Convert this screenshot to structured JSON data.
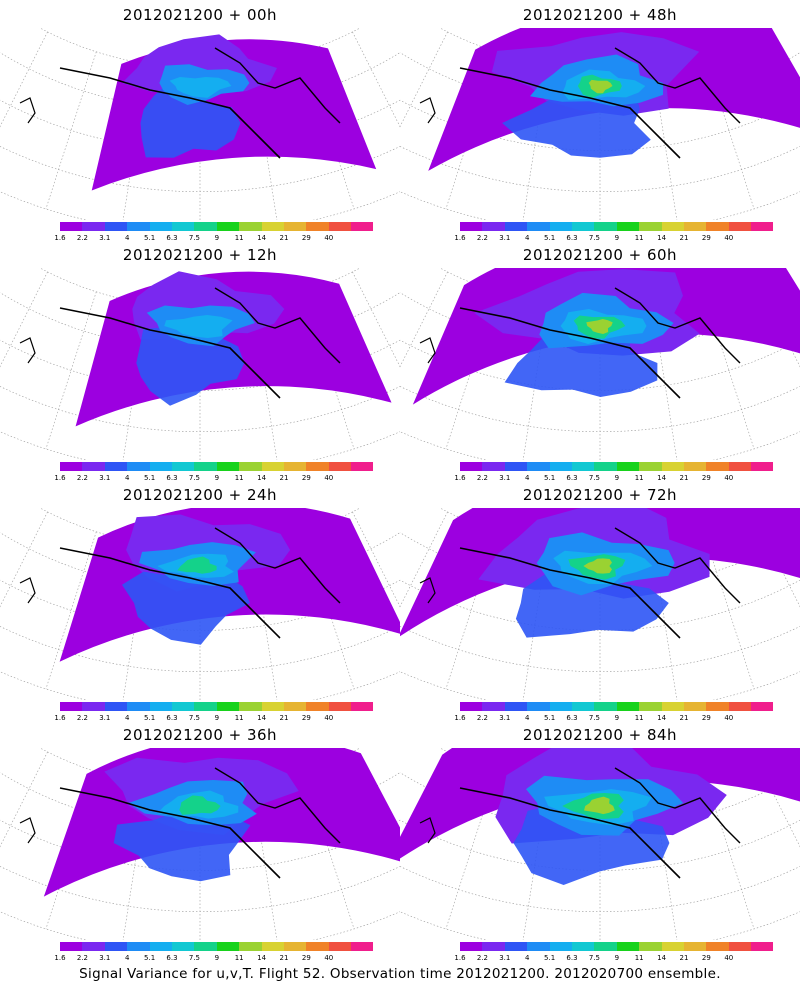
{
  "caption": "Signal Variance for u,v,T. Flight 52. Observation time 2012021200. 2012020700 ensemble.",
  "colorbar": {
    "labels": [
      "1.6",
      "2.2",
      "3.1",
      "4",
      "5.1",
      "6.3",
      "7.5",
      "9",
      "11",
      "14",
      "21",
      "29",
      "40"
    ],
    "colors": [
      "#9c00e0",
      "#7a28f0",
      "#2e55f5",
      "#1e8cf5",
      "#14aef0",
      "#12c8d2",
      "#14d28a",
      "#18d21c",
      "#9ad232",
      "#d8d232",
      "#e6b432",
      "#f08228",
      "#f05040",
      "#f01e8c"
    ]
  },
  "panels": [
    {
      "title": "2012021200 + 00h",
      "level": 0
    },
    {
      "title": "2012021200 + 12h",
      "level": 1
    },
    {
      "title": "2012021200 + 24h",
      "level": 2
    },
    {
      "title": "2012021200 + 36h",
      "level": 3
    },
    {
      "title": "2012021200 + 48h",
      "level": 4
    },
    {
      "title": "2012021200 + 60h",
      "level": 5
    },
    {
      "title": "2012021200 + 72h",
      "level": 6
    },
    {
      "title": "2012021200 + 84h",
      "level": 7
    }
  ]
}
